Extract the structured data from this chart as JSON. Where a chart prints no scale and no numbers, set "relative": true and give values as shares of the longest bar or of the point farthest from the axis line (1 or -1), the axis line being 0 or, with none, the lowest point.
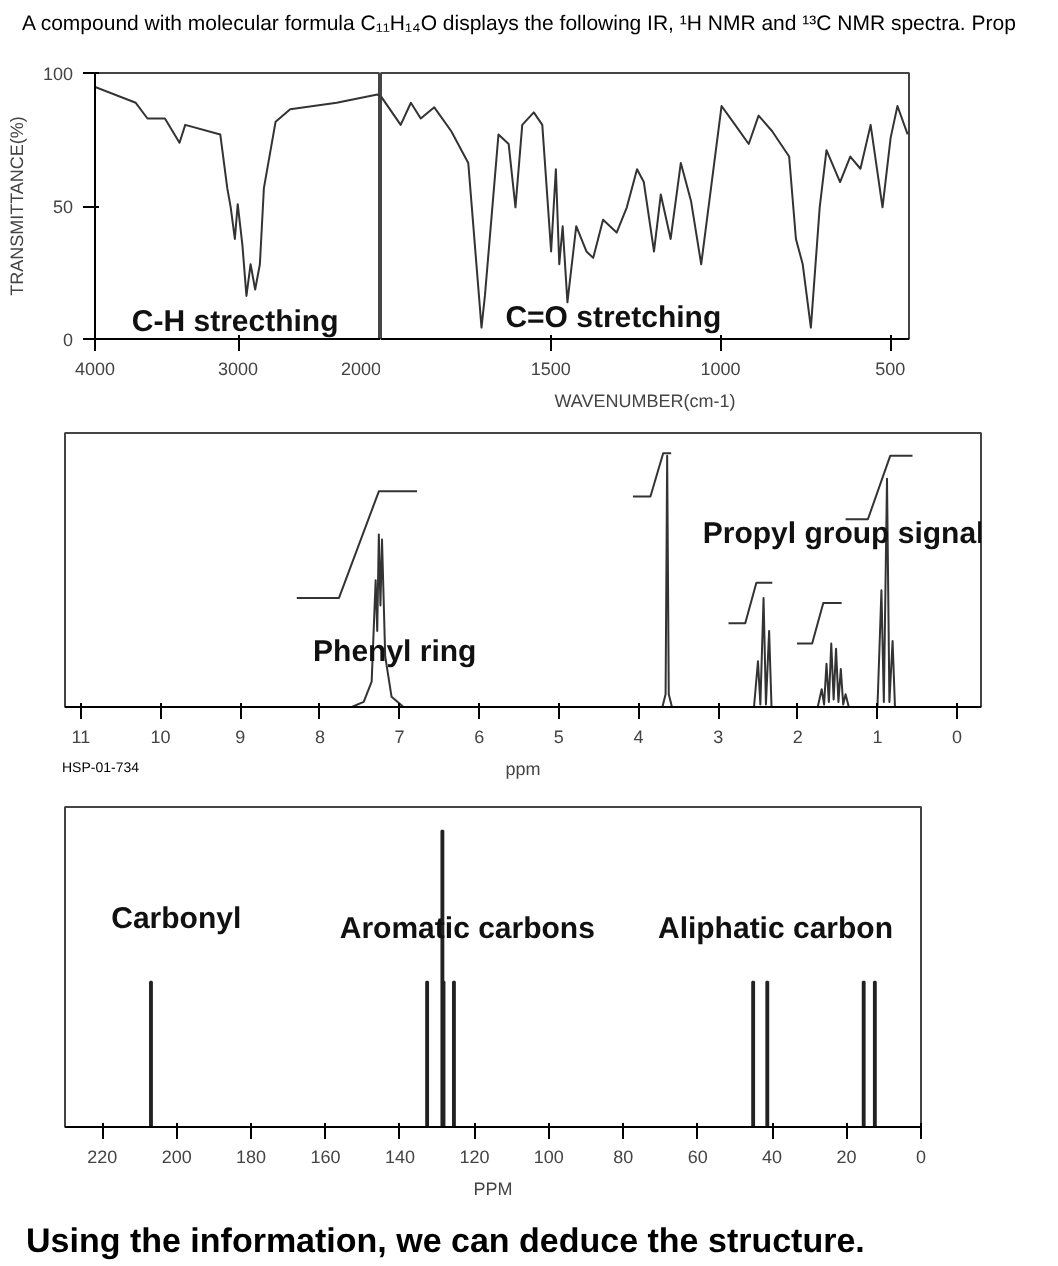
{
  "chart_data": [
    {
      "type": "line",
      "title": "A compound with molecular formula C₁₁H₁₄O displays the following IR, ¹H NMR and ¹³C NMR spectra. Prop",
      "ylabel": "TRANSMITTANCE(%)",
      "xlim": [
        4000,
        2000
      ],
      "xticks": [
        4000,
        3000,
        2000
      ],
      "ylim": [
        0,
        100
      ],
      "yticks": [
        0,
        50,
        100
      ],
      "grid": false,
      "x": [
        4000,
        3715,
        3633,
        3511,
        3409,
        3369,
        3124,
        3075,
        3051,
        3022,
        3002,
        2969,
        2941,
        2912,
        2880,
        2847,
        2819,
        2737,
        2635,
        2310,
        2025,
        2000
      ],
      "series": [
        {
          "color": "#333333",
          "values": [
            94.8,
            88.8,
            82.9,
            82.9,
            73.8,
            80.5,
            76.9,
            56.7,
            49.5,
            37.6,
            50.7,
            35.2,
            16.2,
            28.1,
            18.6,
            28.1,
            56.7,
            81.7,
            86.4,
            88.8,
            91.9,
            91.2
          ]
        }
      ],
      "annotations": [
        "C-H strecthing"
      ]
    },
    {
      "type": "line",
      "xlabel": "WAVENUMBER(cm-1)",
      "xlim": [
        2000,
        445
      ],
      "xticks": [
        1500,
        1000,
        500
      ],
      "ylim": [
        0,
        100
      ],
      "tick_labels": "x",
      "grid": false,
      "x": [
        2000,
        1942,
        1912,
        1883,
        1843,
        1793,
        1743,
        1704,
        1694,
        1654,
        1624,
        1604,
        1584,
        1550,
        1525,
        1499,
        1485,
        1475,
        1465,
        1451,
        1425,
        1395,
        1375,
        1346,
        1306,
        1276,
        1246,
        1226,
        1196,
        1176,
        1147,
        1117,
        1087,
        1057,
        997,
        957,
        917,
        888,
        848,
        798,
        778,
        758,
        734,
        708,
        688,
        648,
        618,
        588,
        558,
        523,
        499,
        479,
        449
      ],
      "series": [
        {
          "color": "#333333",
          "values": [
            91.2,
            80.5,
            88.8,
            82.9,
            87.1,
            78.1,
            66.2,
            4.3,
            16.2,
            76.9,
            73.3,
            49.5,
            80.5,
            85.2,
            80.5,
            32.9,
            63.8,
            28.1,
            42.4,
            13.8,
            42.4,
            32.9,
            30.5,
            44.8,
            40,
            49.5,
            63.8,
            59,
            32.9,
            54.3,
            37.6,
            66.2,
            51.9,
            28.1,
            87.6,
            80.5,
            73.3,
            84,
            78.1,
            68.6,
            37.6,
            28.1,
            4.3,
            49.5,
            71,
            59,
            68.6,
            64,
            80.5,
            49.5,
            75.7,
            87.6,
            76.9
          ]
        }
      ],
      "annotations": [
        "C=O stretching"
      ]
    },
    {
      "type": "line",
      "relative": true,
      "xlabel": "ppm",
      "xlim": [
        11.2,
        -0.3
      ],
      "xticks": [
        11,
        10,
        9,
        8,
        7,
        6,
        5,
        4,
        3,
        2,
        1,
        0
      ],
      "grid": false,
      "series": [
        {
          "color": "#333333",
          "x": [
            11.2,
            7.6,
            7.45,
            7.35,
            7.3,
            7.28,
            7.26,
            7.24,
            7.22,
            7.18,
            7.1,
            6.95,
            3.7,
            3.66,
            3.64,
            3.62,
            3.58,
            2.55,
            2.5,
            2.47,
            2.43,
            2.4,
            2.36,
            2.33,
            1.75,
            1.7,
            1.67,
            1.64,
            1.61,
            1.58,
            1.55,
            1.52,
            1.49,
            1.46,
            1.43,
            1.4,
            1.36,
            1.0,
            0.95,
            0.92,
            0.88,
            0.85,
            0.81,
            0.78,
            -0.3
          ],
          "values": [
            0,
            0,
            0.02,
            0.1,
            0.5,
            0.3,
            0.68,
            0.4,
            0.66,
            0.2,
            0.04,
            0,
            0,
            0.05,
            0.99,
            0.05,
            0,
            0,
            0.18,
            0.01,
            0.43,
            0.01,
            0.3,
            0,
            0,
            0.07,
            0.01,
            0.17,
            0.02,
            0.25,
            0.03,
            0.23,
            0.02,
            0.15,
            0.01,
            0.05,
            0,
            0,
            0.46,
            0.02,
            0.9,
            0.02,
            0.26,
            0,
            0
          ]
        },
        {
          "color": "#333333",
          "x": [
            8.29,
            7.76,
            7.26,
            6.78
          ],
          "values": [
            0.43,
            0.43,
            0.85,
            0.85
          ]
        },
        {
          "color": "#333333",
          "x": [
            4.07,
            3.85,
            3.69,
            3.59
          ],
          "values": [
            0.83,
            0.83,
            1.0,
            1.0
          ]
        },
        {
          "color": "#333333",
          "x": [
            2.87,
            2.66,
            2.52,
            2.32
          ],
          "values": [
            0.33,
            0.33,
            0.49,
            0.49
          ]
        },
        {
          "color": "#333333",
          "x": [
            2.01,
            1.82,
            1.68,
            1.45
          ],
          "values": [
            0.25,
            0.25,
            0.41,
            0.41
          ]
        },
        {
          "color": "#333333",
          "x": [
            1.4,
            1.12,
            0.84,
            0.56
          ],
          "values": [
            0.74,
            0.74,
            0.99,
            0.99
          ]
        }
      ],
      "annotations": [
        "Phenyl ring",
        "Propyl group signal",
        "HSP-01-734"
      ]
    },
    {
      "type": "bar",
      "relative": true,
      "xlabel": "PPM",
      "xlim": [
        230,
        0
      ],
      "xticks": [
        220,
        200,
        180,
        160,
        140,
        120,
        100,
        80,
        60,
        40,
        20,
        0
      ],
      "grid": false,
      "x": [
        206.9,
        132.7,
        128.6,
        128.3,
        125.5,
        45.1,
        41.3,
        15.4,
        12.4
      ],
      "series": [
        {
          "color": "#222222",
          "values": [
            0.49,
            0.49,
            1.0,
            0.49,
            0.49,
            0.49,
            0.49,
            0.49,
            0.49
          ]
        }
      ],
      "annotations": [
        "Carbonyl",
        "Aromatic carbons",
        "Aliphatic carbon",
        "Using the information, we can deduce the structure."
      ]
    }
  ]
}
